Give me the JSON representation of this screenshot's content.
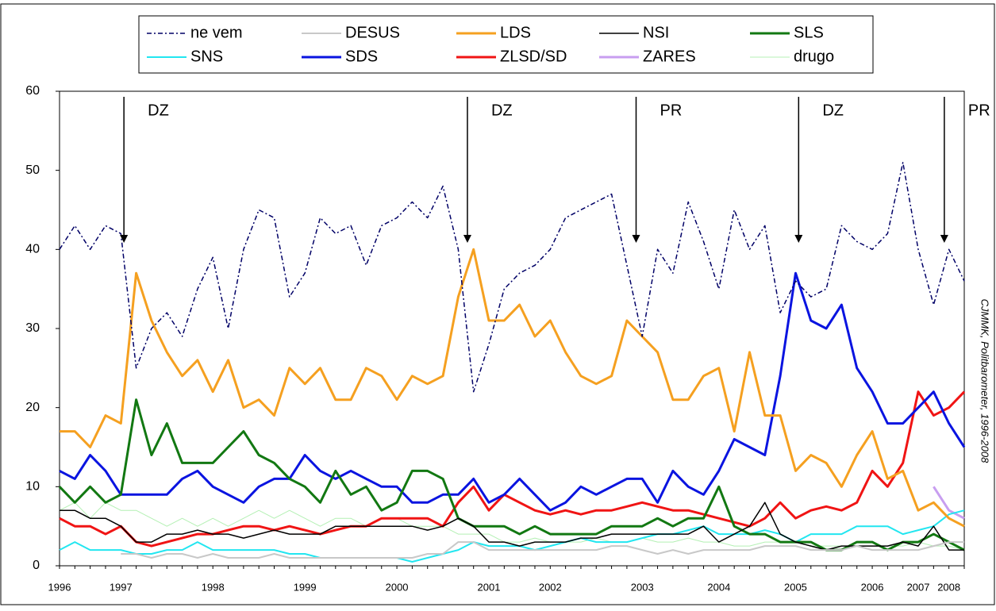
{
  "chart_data": {
    "type": "line",
    "categories": [
      "1996",
      null,
      null,
      null,
      "1997",
      null,
      null,
      null,
      null,
      null,
      "1998",
      null,
      null,
      null,
      null,
      null,
      "1999",
      null,
      null,
      null,
      null,
      null,
      "2000",
      null,
      null,
      null,
      null,
      null,
      "2001",
      null,
      null,
      null,
      "2002",
      null,
      null,
      null,
      null,
      null,
      "2003",
      null,
      null,
      null,
      null,
      "2004",
      null,
      null,
      null,
      null,
      "2005",
      null,
      null,
      null,
      null,
      "2006",
      null,
      null,
      "2007",
      null,
      "2008",
      null
    ],
    "series": [
      {
        "name": "ne vem",
        "color": "#000066",
        "dash": "dash-dot",
        "width": 1.5,
        "values": [
          40,
          43,
          40,
          43,
          42,
          25,
          30,
          32,
          29,
          35,
          39,
          30,
          40,
          45,
          44,
          34,
          37,
          44,
          42,
          43,
          38,
          43,
          44,
          46,
          44,
          48,
          40,
          22,
          28,
          35,
          37,
          38,
          40,
          44,
          45,
          46,
          47,
          38,
          29,
          40,
          37,
          46,
          41,
          35,
          45,
          40,
          43,
          32,
          36,
          34,
          35,
          43,
          41,
          40,
          42,
          51,
          40,
          33,
          40,
          36
        ]
      },
      {
        "name": "DESUS",
        "color": "#c8c8c8",
        "width": 2,
        "values": [
          null,
          null,
          null,
          null,
          1.5,
          1.5,
          1,
          1.5,
          1.5,
          1,
          1.5,
          1,
          1,
          1,
          1.5,
          1,
          1,
          1,
          1,
          1,
          1,
          1,
          1,
          1,
          1.5,
          1.5,
          3,
          3,
          2,
          2,
          2,
          2,
          2,
          2,
          2,
          2,
          2.5,
          2.5,
          2,
          1.5,
          2,
          1.5,
          2,
          2,
          2,
          2,
          2.5,
          2.5,
          2.5,
          2,
          2,
          2,
          2.5,
          2,
          2,
          2,
          2,
          2.5,
          3,
          3
        ]
      },
      {
        "name": "LDS",
        "color": "#f5a020",
        "width": 3,
        "values": [
          17,
          17,
          15,
          19,
          18,
          37,
          31,
          27,
          24,
          26,
          22,
          26,
          20,
          21,
          19,
          25,
          23,
          25,
          21,
          21,
          25,
          24,
          21,
          24,
          23,
          24,
          34,
          40,
          31,
          31,
          33,
          29,
          31,
          27,
          24,
          23,
          24,
          31,
          29,
          27,
          21,
          21,
          24,
          25,
          17,
          27,
          19,
          19,
          12,
          14,
          13,
          10,
          14,
          17,
          11,
          12,
          7,
          8,
          6,
          5
        ]
      },
      {
        "name": "NSI",
        "color": "#000000",
        "width": 1.5,
        "values": [
          7,
          7,
          6,
          6,
          5,
          3,
          3,
          4,
          4,
          4.5,
          4,
          4,
          3.5,
          4,
          4.5,
          4,
          4,
          4,
          5,
          5,
          5,
          5,
          5,
          5,
          4.5,
          5,
          6,
          5,
          3,
          3,
          2.5,
          3,
          3,
          3,
          3.5,
          3.5,
          4,
          4,
          4,
          4,
          4,
          4,
          5,
          3,
          4,
          5,
          8,
          4,
          3,
          2.5,
          2,
          2.5,
          2.5,
          2.5,
          2.5,
          3,
          2.5,
          5,
          2,
          2
        ]
      },
      {
        "name": "SLS",
        "color": "#127812",
        "width": 3,
        "values": [
          10,
          8,
          10,
          8,
          9,
          21,
          14,
          18,
          13,
          13,
          13,
          15,
          17,
          14,
          13,
          11,
          10,
          8,
          12,
          9,
          10,
          7,
          8,
          12,
          12,
          11,
          6,
          5,
          5,
          5,
          4,
          5,
          4,
          4,
          4,
          4,
          5,
          5,
          5,
          6,
          5,
          6,
          6,
          10,
          5,
          4,
          4,
          3,
          3,
          3,
          2,
          2,
          3,
          3,
          2,
          3,
          3,
          4,
          3,
          2
        ]
      },
      {
        "name": "SNS",
        "color": "#22e6f0",
        "width": 2,
        "values": [
          2,
          3,
          2,
          2,
          2,
          1.5,
          1.5,
          2,
          2,
          3,
          2,
          2,
          2,
          2,
          2,
          1.5,
          1.5,
          1,
          1,
          1,
          1,
          1,
          1,
          0.5,
          1,
          1.5,
          2,
          3,
          2.5,
          2.5,
          2.5,
          2,
          2.5,
          3,
          3.5,
          3,
          3,
          3,
          3.5,
          4,
          4,
          4.5,
          5,
          4,
          4,
          4,
          4.5,
          4,
          3,
          4,
          4,
          4,
          5,
          5,
          5,
          4,
          4.5,
          5,
          6.5,
          7
        ]
      },
      {
        "name": "SDS",
        "color": "#0a14e0",
        "width": 3,
        "values": [
          12,
          11,
          14,
          12,
          9,
          9,
          9,
          9,
          11,
          12,
          10,
          9,
          8,
          10,
          11,
          11,
          14,
          12,
          11,
          12,
          11,
          10,
          10,
          8,
          8,
          9,
          9,
          11,
          8,
          9,
          11,
          9,
          7,
          8,
          10,
          9,
          10,
          11,
          11,
          8,
          12,
          10,
          9,
          12,
          16,
          15,
          14,
          24,
          37,
          31,
          30,
          33,
          25,
          22,
          18,
          18,
          20,
          22,
          18,
          15
        ]
      },
      {
        "name": "ZLSD/SD",
        "color": "#f01414",
        "width": 3,
        "values": [
          6,
          5,
          5,
          4,
          5,
          3,
          2.5,
          3,
          3.5,
          4,
          4,
          4.5,
          5,
          5,
          4.5,
          5,
          4.5,
          4,
          4.5,
          5,
          5,
          6,
          6,
          6,
          6,
          5,
          8,
          10,
          7,
          9,
          8,
          7,
          6.5,
          7,
          6.5,
          7,
          7,
          7.5,
          8,
          7.5,
          7,
          7,
          6.5,
          6,
          5.5,
          5,
          6,
          8,
          6,
          7,
          7.5,
          7,
          8,
          12,
          10,
          13,
          22,
          19,
          20,
          22
        ]
      },
      {
        "name": "ZARES",
        "color": "#c89ef0",
        "width": 3,
        "values": [
          null,
          null,
          null,
          null,
          null,
          null,
          null,
          null,
          null,
          null,
          null,
          null,
          null,
          null,
          null,
          null,
          null,
          null,
          null,
          null,
          null,
          null,
          null,
          null,
          null,
          null,
          null,
          null,
          null,
          null,
          null,
          null,
          null,
          null,
          null,
          null,
          null,
          null,
          null,
          null,
          null,
          null,
          null,
          null,
          null,
          null,
          null,
          null,
          null,
          null,
          null,
          null,
          null,
          null,
          null,
          null,
          null,
          10,
          7,
          6
        ]
      },
      {
        "name": "drugo",
        "color": "#b4f0b4",
        "width": 1,
        "values": [
          7,
          8,
          6,
          8,
          7,
          7,
          6,
          5,
          6,
          5,
          6,
          5,
          6,
          7,
          6,
          7,
          6,
          5,
          6,
          6,
          5,
          6,
          6,
          5,
          5,
          5,
          4,
          4,
          4,
          3,
          3,
          3.5,
          3,
          3,
          3,
          3.5,
          3,
          3,
          3.5,
          3,
          3,
          3.5,
          3,
          3,
          2.5,
          2.5,
          3,
          3,
          3,
          2.5,
          2.5,
          2.5,
          2.5,
          2.5,
          2.5,
          2.5,
          3,
          2.5,
          2.5,
          2
        ]
      }
    ],
    "ylim": [
      0,
      60
    ],
    "yticks": [
      0,
      10,
      20,
      30,
      40,
      50,
      60
    ],
    "grid": false,
    "annotations": [
      {
        "label": "DZ",
        "x": 4.2
      },
      {
        "label": "DZ",
        "x": 26.6
      },
      {
        "label": "PR",
        "x": 37.6
      },
      {
        "label": "DZ",
        "x": 48.2
      },
      {
        "label": "PR",
        "x": 57.7
      }
    ],
    "source": "CJMMK, Politbarometer, 1996-2008"
  }
}
